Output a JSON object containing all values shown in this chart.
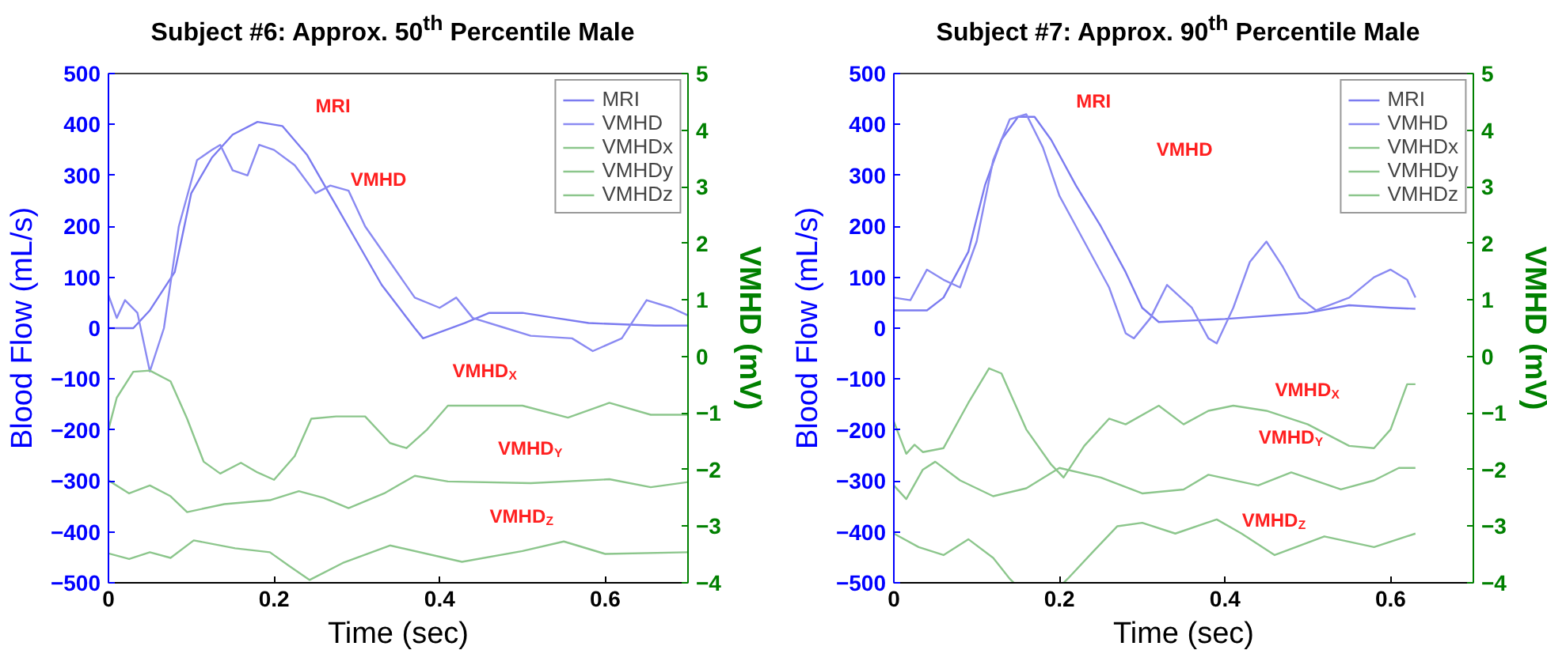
{
  "chart_data": [
    {
      "type": "line",
      "title": "Subject #6: Approx. 50$^{th}$ Percentile Male",
      "xlabel": "Time (sec)",
      "ylabel": "Blood Flow (mL/s)",
      "y2label": "VMHD (mV)",
      "xlim": [
        0,
        0.7
      ],
      "xticks": [
        0,
        0.2,
        0.4,
        0.6
      ],
      "ylim": [
        -500,
        500
      ],
      "yticks": [
        -500,
        -400,
        -300,
        -200,
        -100,
        0,
        100,
        200,
        300,
        400,
        500
      ],
      "y2lim": [
        -4,
        5
      ],
      "y2ticks": [
        -4,
        -3,
        -2,
        -1,
        0,
        1,
        2,
        3,
        4,
        5
      ],
      "legend": "top right",
      "grid": false,
      "series": [
        {
          "name": "MRI",
          "color": "#7b7bf0",
          "x": [
            0,
            0.03,
            0.05,
            0.08,
            0.1,
            0.125,
            0.15,
            0.18,
            0.21,
            0.24,
            0.27,
            0.3,
            0.33,
            0.37,
            0.38,
            0.43,
            0.46,
            0.5,
            0.54,
            0.58,
            0.66,
            0.7
          ],
          "values": [
            0,
            0,
            35,
            110,
            265,
            335,
            380,
            405,
            397,
            340,
            255,
            170,
            85,
            0,
            -20,
            10,
            30,
            30,
            20,
            10,
            5,
            5
          ]
        },
        {
          "name": "VMHD",
          "color": "#8a8af2",
          "x": [
            0,
            0.01,
            0.02,
            0.035,
            0.05,
            0.067,
            0.085,
            0.107,
            0.125,
            0.135,
            0.15,
            0.168,
            0.182,
            0.2,
            0.225,
            0.25,
            0.268,
            0.29,
            0.31,
            0.34,
            0.37,
            0.4,
            0.42,
            0.44,
            0.48,
            0.51,
            0.56,
            0.585,
            0.62,
            0.65,
            0.68,
            0.7
          ],
          "values": [
            65,
            20,
            55,
            30,
            -85,
            0,
            200,
            330,
            350,
            360,
            310,
            300,
            360,
            350,
            320,
            265,
            280,
            270,
            200,
            130,
            60,
            40,
            60,
            20,
            0,
            -15,
            -20,
            -45,
            -20,
            55,
            40,
            25
          ]
        },
        {
          "name": "VMHDx",
          "color": "#8cc68c",
          "axis": "y2",
          "x": [
            0,
            0.01,
            0.03,
            0.05,
            0.075,
            0.095,
            0.115,
            0.135,
            0.16,
            0.18,
            0.2,
            0.225,
            0.245,
            0.275,
            0.31,
            0.34,
            0.36,
            0.385,
            0.41,
            0.455,
            0.5,
            0.555,
            0.605,
            0.655,
            0.7
          ],
          "values": [
            -1.29,
            -0.73,
            -0.27,
            -0.25,
            -0.44,
            -1.1,
            -1.86,
            -2.07,
            -1.88,
            -2.05,
            -2.18,
            -1.76,
            -1.1,
            -1.06,
            -1.06,
            -1.53,
            -1.62,
            -1.29,
            -0.87,
            -0.87,
            -0.87,
            -1.08,
            -0.82,
            -1.03,
            -1.03
          ]
        },
        {
          "name": "VMHDy",
          "color": "#8cc68c",
          "axis": "y2",
          "x": [
            0,
            0.025,
            0.05,
            0.075,
            0.095,
            0.14,
            0.195,
            0.23,
            0.26,
            0.29,
            0.333,
            0.37,
            0.41,
            0.51,
            0.605,
            0.655,
            0.7
          ],
          "values": [
            -2.19,
            -2.42,
            -2.28,
            -2.47,
            -2.75,
            -2.61,
            -2.54,
            -2.38,
            -2.5,
            -2.68,
            -2.42,
            -2.11,
            -2.21,
            -2.24,
            -2.17,
            -2.31,
            -2.22
          ]
        },
        {
          "name": "VMHDz",
          "color": "#8cc68c",
          "axis": "y2",
          "x": [
            0,
            0.025,
            0.05,
            0.075,
            0.103,
            0.153,
            0.195,
            0.218,
            0.243,
            0.283,
            0.34,
            0.427,
            0.5,
            0.55,
            0.6,
            0.7
          ],
          "values": [
            -3.48,
            -3.58,
            -3.46,
            -3.56,
            -3.25,
            -3.39,
            -3.46,
            -3.7,
            -3.95,
            -3.65,
            -3.34,
            -3.63,
            -3.44,
            -3.27,
            -3.49,
            -3.46
          ]
        }
      ],
      "annotations": [
        "MRI",
        "VMHD",
        "VMHD$_{X}$",
        "VMHD$_{Y}$",
        "VMHD$_{Z}$"
      ]
    },
    {
      "type": "line",
      "title": "Subject #7: Approx. 90$^{th}$ Percentile Male",
      "xlabel": "Time (sec)",
      "ylabel": "Blood Flow (mL/s)",
      "y2label": "VMHD (mV)",
      "xlim": [
        0,
        0.7
      ],
      "xticks": [
        0,
        0.2,
        0.4,
        0.6
      ],
      "ylim": [
        -500,
        500
      ],
      "yticks": [
        -500,
        -400,
        -300,
        -200,
        -100,
        0,
        100,
        200,
        300,
        400,
        500
      ],
      "y2lim": [
        -4,
        5
      ],
      "y2ticks": [
        -4,
        -3,
        -2,
        -1,
        0,
        1,
        2,
        3,
        4,
        5
      ],
      "legend": "top right",
      "grid": false,
      "series": [
        {
          "name": "MRI",
          "color": "#7b7bf0",
          "x": [
            0,
            0.04,
            0.06,
            0.09,
            0.11,
            0.13,
            0.15,
            0.17,
            0.19,
            0.22,
            0.25,
            0.28,
            0.3,
            0.32,
            0.4,
            0.5,
            0.55,
            0.6,
            0.63
          ],
          "values": [
            35,
            35,
            60,
            150,
            280,
            370,
            415,
            415,
            370,
            280,
            200,
            110,
            40,
            12,
            18,
            30,
            45,
            40,
            38
          ]
        },
        {
          "name": "VMHD",
          "color": "#8a8af2",
          "x": [
            0,
            0.02,
            0.04,
            0.06,
            0.08,
            0.1,
            0.12,
            0.14,
            0.16,
            0.18,
            0.2,
            0.23,
            0.26,
            0.28,
            0.29,
            0.31,
            0.33,
            0.36,
            0.38,
            0.39,
            0.41,
            0.43,
            0.45,
            0.47,
            0.49,
            0.51,
            0.55,
            0.58,
            0.6,
            0.62,
            0.63
          ],
          "values": [
            60,
            55,
            115,
            95,
            80,
            170,
            330,
            410,
            420,
            355,
            260,
            170,
            80,
            -10,
            -20,
            20,
            85,
            40,
            -20,
            -30,
            40,
            130,
            170,
            120,
            60,
            35,
            60,
            100,
            115,
            95,
            60
          ]
        },
        {
          "name": "VMHDx",
          "color": "#8cc68c",
          "axis": "y2",
          "x": [
            0,
            0.015,
            0.025,
            0.035,
            0.06,
            0.09,
            0.115,
            0.13,
            0.16,
            0.19,
            0.205,
            0.23,
            0.26,
            0.28,
            0.32,
            0.35,
            0.38,
            0.41,
            0.45,
            0.5,
            0.55,
            0.58,
            0.6,
            0.62,
            0.63
          ],
          "values": [
            -1.15,
            -1.72,
            -1.56,
            -1.69,
            -1.62,
            -0.82,
            -0.21,
            -0.3,
            -1.29,
            -1.91,
            -2.14,
            -1.58,
            -1.1,
            -1.2,
            -0.87,
            -1.2,
            -0.96,
            -0.87,
            -0.96,
            -1.2,
            -1.58,
            -1.62,
            -1.29,
            -0.49,
            -0.49
          ]
        },
        {
          "name": "VMHDy",
          "color": "#8cc68c",
          "axis": "y2",
          "x": [
            0,
            0.015,
            0.035,
            0.05,
            0.08,
            0.12,
            0.16,
            0.2,
            0.25,
            0.3,
            0.35,
            0.38,
            0.44,
            0.48,
            0.54,
            0.58,
            0.61,
            0.63
          ],
          "values": [
            -2.28,
            -2.52,
            -2.0,
            -1.86,
            -2.19,
            -2.47,
            -2.33,
            -1.97,
            -2.14,
            -2.42,
            -2.35,
            -2.09,
            -2.28,
            -2.05,
            -2.35,
            -2.19,
            -1.97,
            -1.97
          ]
        },
        {
          "name": "VMHDz",
          "color": "#8cc68c",
          "axis": "y2",
          "x": [
            0,
            0.03,
            0.06,
            0.09,
            0.12,
            0.14,
            0.145,
            0.17,
            0.205,
            0.21,
            0.24,
            0.27,
            0.3,
            0.34,
            0.39,
            0.42,
            0.46,
            0.52,
            0.58,
            0.63
          ],
          "values": [
            -3.13,
            -3.37,
            -3.51,
            -3.23,
            -3.56,
            -3.93,
            -4.0,
            null,
            -4.0,
            -3.93,
            -3.46,
            -3.0,
            -2.94,
            -3.13,
            -2.88,
            -3.13,
            -3.51,
            -3.18,
            -3.37,
            -3.13
          ]
        }
      ],
      "annotations": [
        "MRI",
        "VMHD",
        "VMHD$_{X}$",
        "VMHD$_{Y}$",
        "VMHD$_{Z}$"
      ]
    }
  ]
}
